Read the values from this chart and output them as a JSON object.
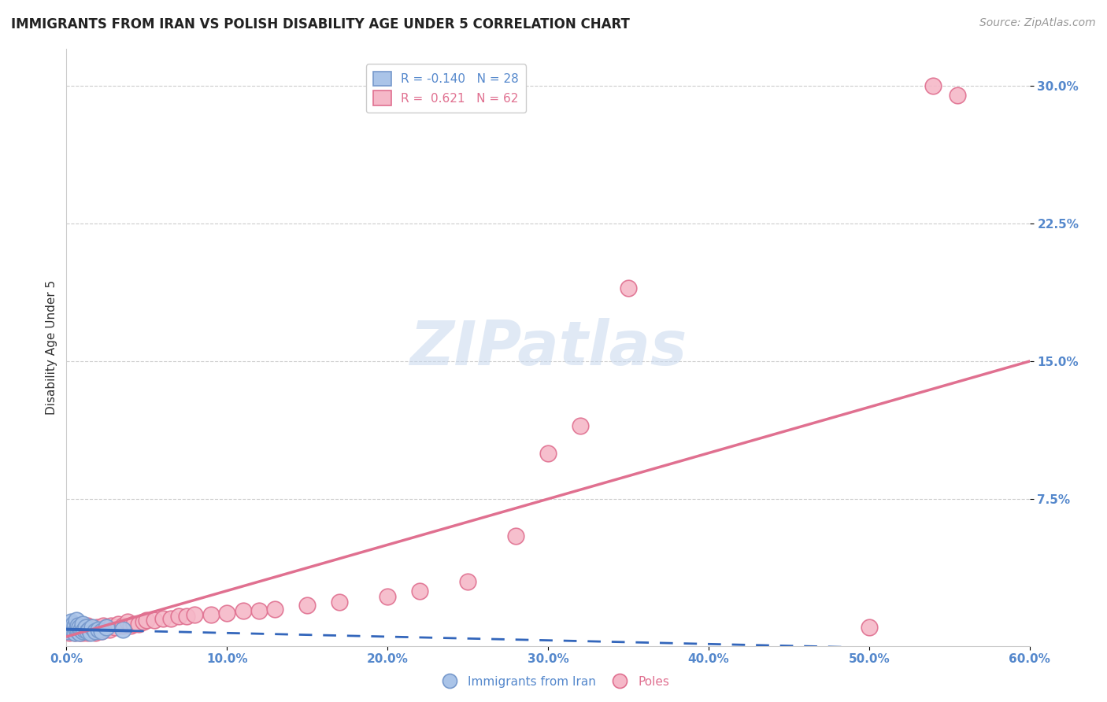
{
  "title": "IMMIGRANTS FROM IRAN VS POLISH DISABILITY AGE UNDER 5 CORRELATION CHART",
  "source": "Source: ZipAtlas.com",
  "ylabel": "Disability Age Under 5",
  "xlim": [
    0.0,
    0.6
  ],
  "ylim": [
    -0.005,
    0.32
  ],
  "xticks": [
    0.0,
    0.1,
    0.2,
    0.3,
    0.4,
    0.5,
    0.6
  ],
  "xticklabels": [
    "0.0%",
    "10.0%",
    "20.0%",
    "30.0%",
    "40.0%",
    "50.0%",
    "60.0%"
  ],
  "ytick_positions": [
    0.075,
    0.15,
    0.225,
    0.3
  ],
  "ytick_labels": [
    "7.5%",
    "15.0%",
    "22.5%",
    "30.0%"
  ],
  "grid_color": "#cccccc",
  "background_color": "#ffffff",
  "legend": {
    "iran_label": "Immigrants from Iran",
    "poles_label": "Poles",
    "iran_R": -0.14,
    "iran_N": 28,
    "poles_R": 0.621,
    "poles_N": 62
  },
  "iran_color": "#aac4e8",
  "iran_edge_color": "#7799cc",
  "poles_color": "#f5b8c8",
  "poles_edge_color": "#e07090",
  "iran_line_color": "#3366bb",
  "poles_line_color": "#e07090",
  "iran_scatter_x": [
    0.001,
    0.002,
    0.003,
    0.003,
    0.004,
    0.004,
    0.005,
    0.005,
    0.006,
    0.006,
    0.007,
    0.007,
    0.008,
    0.008,
    0.009,
    0.01,
    0.01,
    0.011,
    0.012,
    0.013,
    0.014,
    0.015,
    0.016,
    0.018,
    0.02,
    0.022,
    0.025,
    0.035
  ],
  "iran_scatter_y": [
    0.003,
    0.005,
    0.004,
    0.008,
    0.003,
    0.007,
    0.002,
    0.006,
    0.004,
    0.009,
    0.003,
    0.006,
    0.002,
    0.005,
    0.004,
    0.003,
    0.007,
    0.004,
    0.005,
    0.003,
    0.004,
    0.002,
    0.005,
    0.003,
    0.004,
    0.003,
    0.005,
    0.004
  ],
  "poles_scatter_x": [
    0.002,
    0.003,
    0.004,
    0.005,
    0.005,
    0.006,
    0.007,
    0.008,
    0.008,
    0.009,
    0.01,
    0.01,
    0.011,
    0.012,
    0.013,
    0.013,
    0.014,
    0.015,
    0.016,
    0.017,
    0.018,
    0.019,
    0.02,
    0.021,
    0.022,
    0.023,
    0.024,
    0.025,
    0.027,
    0.028,
    0.03,
    0.032,
    0.035,
    0.038,
    0.04,
    0.042,
    0.045,
    0.048,
    0.05,
    0.055,
    0.06,
    0.065,
    0.07,
    0.075,
    0.08,
    0.09,
    0.1,
    0.11,
    0.12,
    0.13,
    0.15,
    0.17,
    0.2,
    0.22,
    0.25,
    0.28,
    0.3,
    0.32,
    0.35,
    0.5,
    0.54,
    0.555
  ],
  "poles_scatter_y": [
    0.002,
    0.003,
    0.004,
    0.002,
    0.005,
    0.003,
    0.004,
    0.002,
    0.006,
    0.003,
    0.005,
    0.002,
    0.004,
    0.003,
    0.002,
    0.006,
    0.003,
    0.005,
    0.003,
    0.004,
    0.002,
    0.005,
    0.003,
    0.004,
    0.003,
    0.006,
    0.004,
    0.005,
    0.004,
    0.006,
    0.005,
    0.007,
    0.006,
    0.008,
    0.006,
    0.007,
    0.007,
    0.008,
    0.009,
    0.009,
    0.01,
    0.01,
    0.011,
    0.011,
    0.012,
    0.012,
    0.013,
    0.014,
    0.014,
    0.015,
    0.017,
    0.019,
    0.022,
    0.025,
    0.03,
    0.055,
    0.1,
    0.115,
    0.19,
    0.005,
    0.3,
    0.295
  ],
  "title_fontsize": 12,
  "axis_label_fontsize": 11,
  "tick_fontsize": 11,
  "legend_fontsize": 11,
  "source_fontsize": 10
}
